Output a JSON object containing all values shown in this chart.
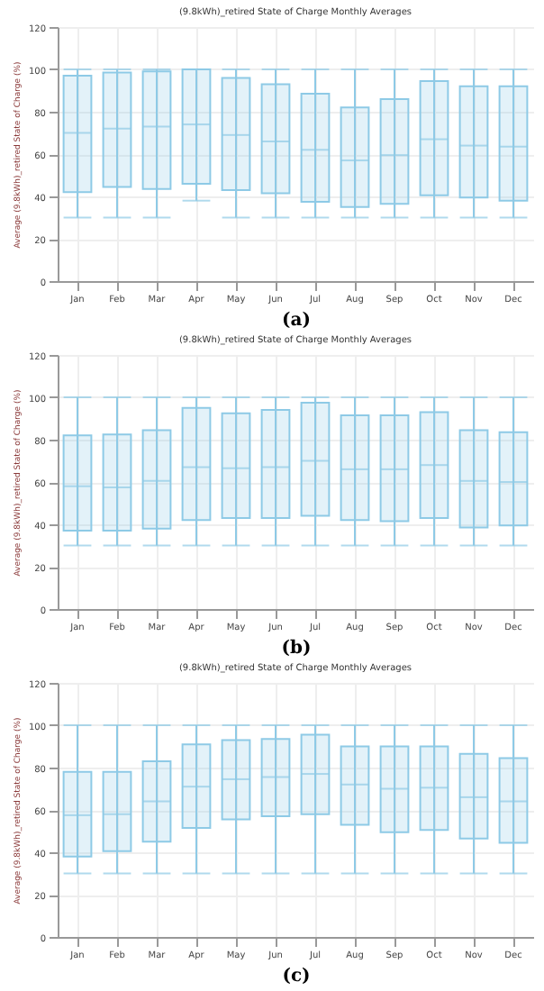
{
  "chart_data": [
    {
      "type": "box",
      "title": "(9.8kWh)_retired State of Charge Monthly Averages",
      "ylabel": "Average (9.8kWh)_retired State of Charge (%)",
      "xlabel": "(a)",
      "color": "#8ecae6",
      "ylim": [
        0,
        120
      ],
      "yticks": [
        0,
        20,
        40,
        60,
        80,
        100,
        120
      ],
      "grid": true,
      "categories": [
        "Jan",
        "Feb",
        "Mar",
        "Apr",
        "May",
        "Jun",
        "Jul",
        "Aug",
        "Sep",
        "Oct",
        "Nov",
        "Dec"
      ],
      "boxes": [
        {
          "low": 30,
          "q1": 42,
          "median": 70,
          "q3": 97,
          "high": 100
        },
        {
          "low": 30,
          "q1": 44.5,
          "median": 72,
          "q3": 98.5,
          "high": 100
        },
        {
          "low": 30,
          "q1": 43.5,
          "median": 73,
          "q3": 99,
          "high": 100
        },
        {
          "low": 38,
          "q1": 46,
          "median": 74,
          "q3": 100,
          "high": 100
        },
        {
          "low": 30,
          "q1": 43,
          "median": 69,
          "q3": 96,
          "high": 100
        },
        {
          "low": 30,
          "q1": 41.5,
          "median": 66,
          "q3": 93,
          "high": 100
        },
        {
          "low": 30,
          "q1": 37.5,
          "median": 62,
          "q3": 88.5,
          "high": 100
        },
        {
          "low": 30,
          "q1": 35,
          "median": 57,
          "q3": 82,
          "high": 100
        },
        {
          "low": 30,
          "q1": 36.5,
          "median": 59.5,
          "q3": 86,
          "high": 100
        },
        {
          "low": 30,
          "q1": 40.5,
          "median": 67,
          "q3": 94.5,
          "high": 100
        },
        {
          "low": 30,
          "q1": 39.5,
          "median": 64,
          "q3": 92,
          "high": 100
        },
        {
          "low": 30,
          "q1": 38,
          "median": 63.5,
          "q3": 92,
          "high": 100
        }
      ]
    },
    {
      "type": "box",
      "title": "(9.8kWh)_retired State of Charge Monthly Averages",
      "ylabel": "Average (9.8kWh)_retired State of Charge (%)",
      "xlabel": "(b)",
      "color": "#8ecae6",
      "ylim": [
        0,
        120
      ],
      "yticks": [
        0,
        20,
        40,
        60,
        80,
        100,
        120
      ],
      "grid": true,
      "categories": [
        "Jan",
        "Feb",
        "Mar",
        "Apr",
        "May",
        "Jun",
        "Jul",
        "Aug",
        "Sep",
        "Oct",
        "Nov",
        "Dec"
      ],
      "boxes": [
        {
          "low": 30,
          "q1": 37,
          "median": 58,
          "q3": 82,
          "high": 100
        },
        {
          "low": 30,
          "q1": 37,
          "median": 57.5,
          "q3": 82.5,
          "high": 100
        },
        {
          "low": 30,
          "q1": 38,
          "median": 60.5,
          "q3": 84.5,
          "high": 100
        },
        {
          "low": 30,
          "q1": 42,
          "median": 67,
          "q3": 95,
          "high": 100
        },
        {
          "low": 30,
          "q1": 43,
          "median": 66.5,
          "q3": 92.5,
          "high": 100
        },
        {
          "low": 30,
          "q1": 43,
          "median": 67,
          "q3": 94,
          "high": 100
        },
        {
          "low": 30,
          "q1": 44,
          "median": 70,
          "q3": 97.5,
          "high": 100
        },
        {
          "low": 30,
          "q1": 42,
          "median": 66,
          "q3": 91.5,
          "high": 100
        },
        {
          "low": 30,
          "q1": 41.5,
          "median": 66,
          "q3": 91.5,
          "high": 100
        },
        {
          "low": 30,
          "q1": 43,
          "median": 68,
          "q3": 93,
          "high": 100
        },
        {
          "low": 30,
          "q1": 38.5,
          "median": 60.5,
          "q3": 84.5,
          "high": 100
        },
        {
          "low": 30,
          "q1": 39.5,
          "median": 60,
          "q3": 83.5,
          "high": 100
        }
      ]
    },
    {
      "type": "box",
      "title": "(9.8kWh)_retired State of Charge Monthly Averages",
      "ylabel": "Average (9.8kWh)_retired State of Charge (%)",
      "xlabel": "(c)",
      "color": "#8ecae6",
      "ylim": [
        0,
        120
      ],
      "yticks": [
        0,
        20,
        40,
        60,
        80,
        100,
        120
      ],
      "grid": true,
      "categories": [
        "Jan",
        "Feb",
        "Mar",
        "Apr",
        "May",
        "Jun",
        "Jul",
        "Aug",
        "Sep",
        "Oct",
        "Nov",
        "Dec"
      ],
      "boxes": [
        {
          "low": 30,
          "q1": 38,
          "median": 57.5,
          "q3": 78,
          "high": 100
        },
        {
          "low": 30,
          "q1": 40.5,
          "median": 58,
          "q3": 78,
          "high": 100
        },
        {
          "low": 30,
          "q1": 45,
          "median": 64,
          "q3": 83,
          "high": 100
        },
        {
          "low": 30,
          "q1": 51.5,
          "median": 71,
          "q3": 91,
          "high": 100
        },
        {
          "low": 30,
          "q1": 55.5,
          "median": 74.5,
          "q3": 93,
          "high": 100
        },
        {
          "low": 30,
          "q1": 57,
          "median": 75.5,
          "q3": 93.5,
          "high": 100
        },
        {
          "low": 30,
          "q1": 58,
          "median": 77,
          "q3": 95.5,
          "high": 100
        },
        {
          "low": 30,
          "q1": 53,
          "median": 72,
          "q3": 90,
          "high": 100
        },
        {
          "low": 30,
          "q1": 49.5,
          "median": 70,
          "q3": 90,
          "high": 100
        },
        {
          "low": 30,
          "q1": 50.5,
          "median": 70.5,
          "q3": 90,
          "high": 100
        },
        {
          "low": 30,
          "q1": 46.5,
          "median": 66,
          "q3": 86.5,
          "high": 100
        },
        {
          "low": 30,
          "q1": 44.5,
          "median": 64,
          "q3": 84.5,
          "high": 100
        }
      ]
    }
  ]
}
